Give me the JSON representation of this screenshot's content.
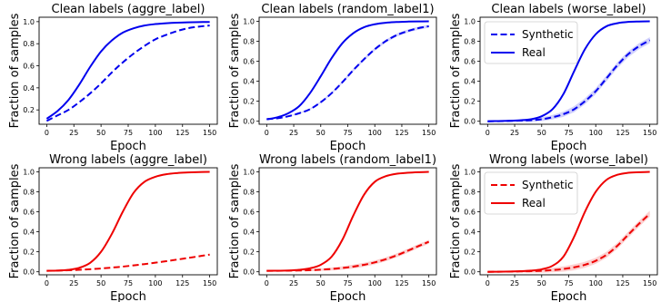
{
  "figure": {
    "colors": {
      "clean": "#0000ee",
      "wrong": "#ee0000",
      "band_alpha": 0.18
    },
    "xlabel": "Epoch",
    "ylabel": "Fraction of samples",
    "x_ticks": [
      0,
      25,
      50,
      75,
      100,
      125,
      150
    ],
    "legend_labels": {
      "synthetic": "Synthetic",
      "real": "Real"
    }
  },
  "chart_data": [
    {
      "type": "line",
      "title": "Clean labels (aggre_label)",
      "xlabel": "Epoch",
      "ylabel": "Fraction of samples",
      "xlim": [
        -7,
        157
      ],
      "ylim": [
        0.07,
        1.04
      ],
      "y_ticks": [
        "0.2",
        "0.4",
        "0.6",
        "0.8",
        "1.0"
      ],
      "y_tick_values": [
        0.2,
        0.4,
        0.6,
        0.8,
        1.0
      ],
      "color": "#0000ee",
      "legend": false,
      "legend_position": "none",
      "series": [
        {
          "style": "solid",
          "x": [
            0,
            10,
            20,
            30,
            40,
            50,
            60,
            70,
            80,
            90,
            100,
            110,
            120,
            130,
            140,
            150
          ],
          "y": [
            0.12,
            0.19,
            0.29,
            0.43,
            0.59,
            0.73,
            0.83,
            0.9,
            0.94,
            0.965,
            0.978,
            0.986,
            0.991,
            0.994,
            0.996,
            0.997
          ]
        },
        {
          "style": "dashed",
          "x": [
            0,
            10,
            20,
            30,
            40,
            50,
            60,
            70,
            80,
            90,
            100,
            110,
            120,
            130,
            140,
            150
          ],
          "y": [
            0.1,
            0.15,
            0.2,
            0.27,
            0.35,
            0.44,
            0.54,
            0.63,
            0.71,
            0.78,
            0.84,
            0.88,
            0.915,
            0.94,
            0.955,
            0.965
          ]
        }
      ]
    },
    {
      "type": "line",
      "title": "Clean labels (random_label1)",
      "xlabel": "Epoch",
      "ylabel": "Fraction of samples",
      "xlim": [
        -7,
        157
      ],
      "ylim": [
        -0.03,
        1.04
      ],
      "y_ticks": [
        "0.0",
        "0.2",
        "0.4",
        "0.6",
        "0.8",
        "1.0"
      ],
      "y_tick_values": [
        0,
        0.2,
        0.4,
        0.6,
        0.8,
        1.0
      ],
      "color": "#0000ee",
      "legend": false,
      "legend_position": "none",
      "series": [
        {
          "style": "solid",
          "x": [
            0,
            10,
            20,
            30,
            40,
            50,
            60,
            70,
            80,
            90,
            100,
            110,
            120,
            130,
            140,
            150
          ],
          "y": [
            0.02,
            0.04,
            0.08,
            0.15,
            0.28,
            0.45,
            0.63,
            0.78,
            0.88,
            0.94,
            0.97,
            0.985,
            0.992,
            0.996,
            0.998,
            0.999
          ]
        },
        {
          "style": "dashed",
          "x": [
            0,
            10,
            20,
            30,
            40,
            50,
            60,
            70,
            80,
            90,
            100,
            110,
            120,
            130,
            140,
            150
          ],
          "y": [
            0.02,
            0.03,
            0.05,
            0.08,
            0.12,
            0.19,
            0.28,
            0.39,
            0.51,
            0.62,
            0.72,
            0.8,
            0.86,
            0.9,
            0.93,
            0.95
          ],
          "band": 0.015
        }
      ]
    },
    {
      "type": "line",
      "title": "Clean labels (worse_label)",
      "xlabel": "Epoch",
      "ylabel": "Fraction of samples",
      "xlim": [
        -7,
        157
      ],
      "ylim": [
        -0.03,
        1.04
      ],
      "y_ticks": [
        "0.0",
        "0.2",
        "0.4",
        "0.6",
        "0.8",
        "1.0"
      ],
      "y_tick_values": [
        0,
        0.2,
        0.4,
        0.6,
        0.8,
        1.0
      ],
      "color": "#0000ee",
      "legend": true,
      "legend_position": "upper-left",
      "series": [
        {
          "name": "Real",
          "style": "solid",
          "x": [
            0,
            10,
            20,
            30,
            40,
            50,
            60,
            70,
            80,
            90,
            100,
            110,
            120,
            130,
            140,
            150
          ],
          "y": [
            0,
            0.002,
            0.005,
            0.01,
            0.02,
            0.05,
            0.12,
            0.27,
            0.5,
            0.72,
            0.87,
            0.95,
            0.98,
            0.993,
            0.997,
            0.999
          ]
        },
        {
          "name": "Synthetic",
          "style": "dashed",
          "x": [
            0,
            10,
            20,
            30,
            40,
            50,
            60,
            70,
            80,
            90,
            100,
            110,
            120,
            130,
            140,
            150
          ],
          "y": [
            0,
            0.001,
            0.003,
            0.006,
            0.01,
            0.02,
            0.04,
            0.07,
            0.12,
            0.2,
            0.3,
            0.43,
            0.56,
            0.67,
            0.75,
            0.81
          ],
          "band": 0.03
        }
      ]
    },
    {
      "type": "line",
      "title": "Wrong labels (aggre_label)",
      "xlabel": "Epoch",
      "ylabel": "Fraction of samples",
      "xlim": [
        -7,
        157
      ],
      "ylim": [
        -0.03,
        1.04
      ],
      "y_ticks": [
        "0.0",
        "0.2",
        "0.4",
        "0.6",
        "0.8",
        "1.0"
      ],
      "y_tick_values": [
        0,
        0.2,
        0.4,
        0.6,
        0.8,
        1.0
      ],
      "color": "#ee0000",
      "legend": false,
      "legend_position": "none",
      "series": [
        {
          "style": "solid",
          "x": [
            0,
            10,
            20,
            30,
            40,
            50,
            60,
            70,
            80,
            90,
            100,
            110,
            120,
            130,
            140,
            150
          ],
          "y": [
            0.01,
            0.012,
            0.02,
            0.04,
            0.09,
            0.2,
            0.38,
            0.6,
            0.79,
            0.9,
            0.95,
            0.975,
            0.987,
            0.993,
            0.997,
            0.999
          ]
        },
        {
          "style": "dashed",
          "x": [
            0,
            10,
            20,
            30,
            40,
            50,
            60,
            70,
            80,
            90,
            100,
            110,
            120,
            130,
            140,
            150
          ],
          "y": [
            0.01,
            0.012,
            0.015,
            0.02,
            0.026,
            0.033,
            0.042,
            0.052,
            0.064,
            0.077,
            0.091,
            0.106,
            0.122,
            0.138,
            0.155,
            0.172
          ]
        }
      ]
    },
    {
      "type": "line",
      "title": "Wrong labels (random_label1)",
      "xlabel": "Epoch",
      "ylabel": "Fraction of samples",
      "xlim": [
        -7,
        157
      ],
      "ylim": [
        -0.03,
        1.04
      ],
      "y_ticks": [
        "0.0",
        "0.2",
        "0.4",
        "0.6",
        "0.8",
        "1.0"
      ],
      "y_tick_values": [
        0,
        0.2,
        0.4,
        0.6,
        0.8,
        1.0
      ],
      "color": "#ee0000",
      "legend": false,
      "legend_position": "none",
      "series": [
        {
          "style": "solid",
          "x": [
            0,
            10,
            20,
            30,
            40,
            50,
            60,
            70,
            80,
            90,
            100,
            110,
            120,
            130,
            140,
            150
          ],
          "y": [
            0.01,
            0.011,
            0.013,
            0.02,
            0.035,
            0.07,
            0.15,
            0.32,
            0.56,
            0.77,
            0.9,
            0.955,
            0.98,
            0.99,
            0.996,
            0.999
          ]
        },
        {
          "style": "dashed",
          "x": [
            0,
            10,
            20,
            30,
            40,
            50,
            60,
            70,
            80,
            90,
            100,
            110,
            120,
            130,
            140,
            150
          ],
          "y": [
            0.01,
            0.01,
            0.011,
            0.013,
            0.016,
            0.021,
            0.028,
            0.038,
            0.052,
            0.07,
            0.094,
            0.125,
            0.163,
            0.208,
            0.255,
            0.3
          ],
          "band": 0.02
        }
      ]
    },
    {
      "type": "line",
      "title": "Wrong labels (worse_label)",
      "xlabel": "Epoch",
      "ylabel": "Fraction of samples",
      "xlim": [
        -7,
        157
      ],
      "ylim": [
        -0.03,
        1.04
      ],
      "y_ticks": [
        "0.0",
        "0.2",
        "0.4",
        "0.6",
        "0.8",
        "1.0"
      ],
      "y_tick_values": [
        0,
        0.2,
        0.4,
        0.6,
        0.8,
        1.0
      ],
      "color": "#ee0000",
      "legend": true,
      "legend_position": "upper-left",
      "series": [
        {
          "name": "Real",
          "style": "solid",
          "x": [
            0,
            10,
            20,
            30,
            40,
            50,
            60,
            70,
            80,
            90,
            100,
            110,
            120,
            130,
            140,
            150
          ],
          "y": [
            0,
            0.001,
            0.003,
            0.006,
            0.012,
            0.025,
            0.06,
            0.15,
            0.35,
            0.6,
            0.8,
            0.92,
            0.97,
            0.99,
            0.996,
            0.999
          ]
        },
        {
          "name": "Synthetic",
          "style": "dashed",
          "x": [
            0,
            10,
            20,
            30,
            40,
            50,
            60,
            70,
            80,
            90,
            100,
            110,
            120,
            130,
            140,
            150
          ],
          "y": [
            0,
            0.001,
            0.002,
            0.004,
            0.006,
            0.01,
            0.017,
            0.028,
            0.045,
            0.07,
            0.11,
            0.17,
            0.26,
            0.37,
            0.48,
            0.58
          ],
          "band": 0.03
        }
      ]
    }
  ]
}
